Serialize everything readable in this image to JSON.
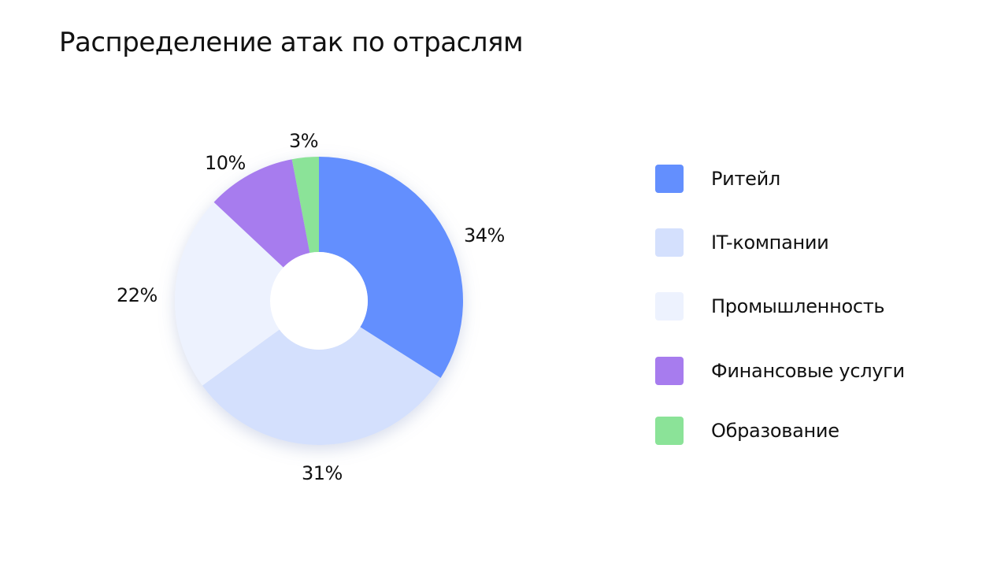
{
  "title": "Распределение атак по отраслям",
  "chart_data": {
    "type": "pie",
    "variant": "donut",
    "title": "Распределение атак по отраслям",
    "categories": [
      "Ритейл",
      "IT-компании",
      "Промышленность",
      "Финансовые услуги",
      "Образование"
    ],
    "values": [
      34,
      31,
      22,
      10,
      3
    ],
    "labels": [
      "34%",
      "31%",
      "22%",
      "10%",
      "3%"
    ],
    "colors": [
      "#638ffe",
      "#d4e0fd",
      "#edf2fe",
      "#a77cee",
      "#8be398"
    ],
    "start_angle": "12 o'clock, clockwise",
    "legend_position": "right"
  },
  "slice_labels": {
    "retail": "34%",
    "it": "31%",
    "industry": "22%",
    "finance": "10%",
    "education": "3%"
  },
  "legend": {
    "items": [
      {
        "label": "Ритейл",
        "color": "#638ffe"
      },
      {
        "label": "IT-компании",
        "color": "#d4e0fd"
      },
      {
        "label": "Промышленность",
        "color": "#edf2fe"
      },
      {
        "label": "Финансовые услуги",
        "color": "#a77cee"
      },
      {
        "label": "Образование",
        "color": "#8be398"
      }
    ]
  }
}
